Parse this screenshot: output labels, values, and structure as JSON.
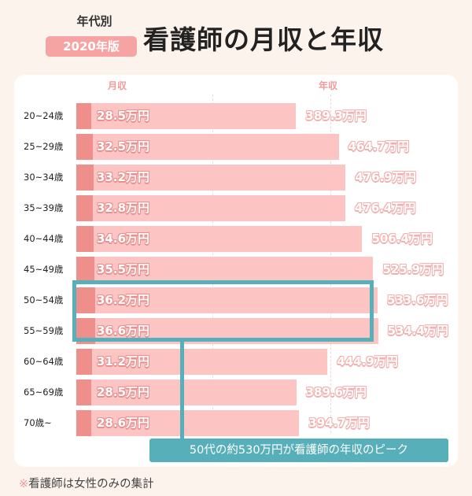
{
  "header": {
    "subtitle": "年代別",
    "badge": "2020年版",
    "title": "看護師の月収と年収"
  },
  "legend": {
    "monthly": "月収",
    "annual": "年収"
  },
  "chart_data": {
    "type": "bar",
    "orientation": "horizontal",
    "categories": [
      "20~24歳",
      "25~29歳",
      "30~34歳",
      "35~39歳",
      "40~44歳",
      "45~49歳",
      "50~54歳",
      "55~59歳",
      "60~64歳",
      "65~69歳",
      "70歳~"
    ],
    "series": [
      {
        "name": "月収",
        "unit": "万円",
        "values": [
          28.5,
          32.5,
          33.2,
          32.8,
          34.6,
          35.5,
          36.2,
          36.6,
          31.2,
          28.5,
          28.6
        ]
      },
      {
        "name": "年収",
        "unit": "万円",
        "values": [
          389.3,
          464.7,
          476.9,
          476.4,
          506.4,
          525.9,
          533.6,
          534.4,
          444.9,
          389.6,
          394.7
        ]
      }
    ],
    "labels": {
      "monthly": [
        "28.5万円",
        "32.5万円",
        "33.2万円",
        "32.8万円",
        "34.6万円",
        "35.5万円",
        "36.2万円",
        "36.6万円",
        "31.2万円",
        "28.5万円",
        "28.6万円"
      ],
      "annual": [
        "389.3万円",
        "464.7万円",
        "476.9万円",
        "476.4万円",
        "506.4万円",
        "525.9万円",
        "533.6万円",
        "534.4万円",
        "444.9万円",
        "389.6万円",
        "394.7万円"
      ]
    },
    "highlight_categories": [
      "50~54歳",
      "55~59歳"
    ],
    "colors": {
      "monthly": "#ef8f8b",
      "annual": "#fcc5c3",
      "highlight": "#57afb9"
    }
  },
  "annotation": {
    "callout": "50代の約530万円が看護師の年収のピーク"
  },
  "footnote": {
    "mark": "※",
    "text": "看護師は女性のみの集計"
  }
}
